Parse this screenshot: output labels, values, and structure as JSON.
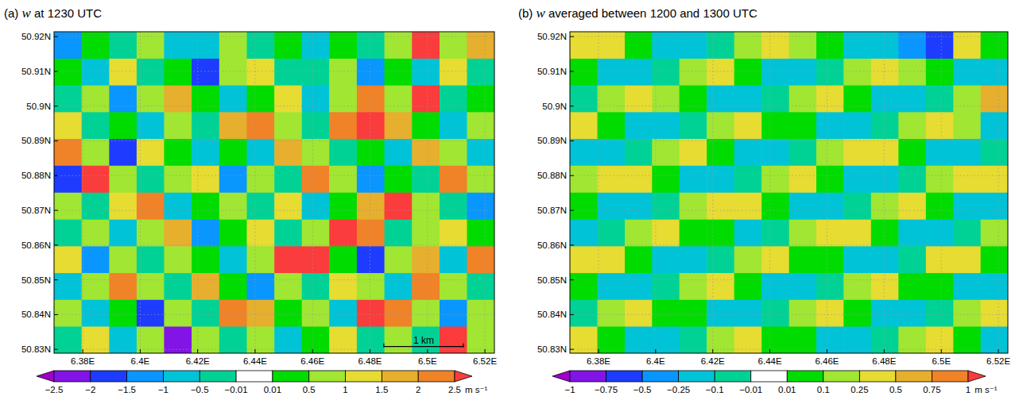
{
  "chart_data": [
    {
      "type": "heatmap",
      "title": "(a) w at 1230 UTC",
      "xlim": [
        6.37,
        6.5233
      ],
      "ylim": [
        50.8289,
        50.9214
      ],
      "grid": true,
      "xticks": [
        {
          "value": 6.38,
          "label": "6.38E"
        },
        {
          "value": 6.4,
          "label": "6.4E"
        },
        {
          "value": 6.42,
          "label": "6.42E"
        },
        {
          "value": 6.44,
          "label": "6.44E"
        },
        {
          "value": 6.46,
          "label": "6.46E"
        },
        {
          "value": 6.48,
          "label": "6.48E"
        },
        {
          "value": 6.5,
          "label": "6.5E"
        },
        {
          "value": 6.52,
          "label": "6.52E"
        }
      ],
      "yticks": [
        {
          "value": 50.83,
          "label": "50.83N"
        },
        {
          "value": 50.84,
          "label": "50.84N"
        },
        {
          "value": 50.85,
          "label": "50.85N"
        },
        {
          "value": 50.86,
          "label": "50.86N"
        },
        {
          "value": 50.87,
          "label": "50.87N"
        },
        {
          "value": 50.88,
          "label": "50.88N"
        },
        {
          "value": 50.89,
          "label": "50.89N"
        },
        {
          "value": 50.9,
          "label": "50.9N"
        },
        {
          "value": 50.91,
          "label": "50.91N"
        },
        {
          "value": 50.92,
          "label": "50.92N"
        }
      ],
      "x": [
        6.3748,
        6.3844,
        6.394,
        6.4035,
        6.4131,
        6.4227,
        6.4323,
        6.4419,
        6.4515,
        6.461,
        6.4706,
        6.4802,
        6.4898,
        6.4994,
        6.509,
        6.5185
      ],
      "y": [
        50.9175,
        50.9098,
        50.9021,
        50.8944,
        50.8867,
        50.879,
        50.8712,
        50.8635,
        50.8558,
        50.8481,
        50.8404,
        50.8327
      ],
      "values": [
        [
          -1.2,
          0.3,
          -0.3,
          0.6,
          -0.6,
          -1.0,
          0.8,
          -0.4,
          0.2,
          -0.8,
          0.4,
          -0.3,
          0.7,
          2.6,
          0.5,
          1.8
        ],
        [
          0.4,
          -0.6,
          1.2,
          -0.3,
          0.2,
          -1.6,
          0.5,
          1.0,
          -0.4,
          -0.2,
          0.6,
          -1.1,
          0.3,
          -0.6,
          1.4,
          -0.5
        ],
        [
          -0.5,
          0.8,
          -1.3,
          0.6,
          1.6,
          0.3,
          -0.7,
          0.4,
          1.2,
          -0.9,
          0.8,
          2.3,
          0.6,
          2.6,
          -0.4,
          0.3
        ],
        [
          1.0,
          -0.3,
          0.4,
          -0.9,
          0.9,
          -0.4,
          1.8,
          2.1,
          0.6,
          -0.3,
          2.4,
          2.7,
          1.5,
          0.4,
          -1.0,
          0.6
        ],
        [
          2.4,
          0.6,
          -1.6,
          1.2,
          0.4,
          -0.8,
          0.3,
          -0.6,
          1.6,
          0.8,
          -0.5,
          0.3,
          -0.9,
          1.9,
          0.5,
          -0.7
        ],
        [
          -1.8,
          2.7,
          0.8,
          -0.4,
          0.6,
          1.3,
          -1.2,
          0.7,
          -0.3,
          2.0,
          0.6,
          -1.4,
          0.4,
          -0.2,
          2.2,
          0.5
        ],
        [
          0.6,
          -0.5,
          1.4,
          2.2,
          -0.7,
          0.3,
          0.8,
          -0.4,
          1.1,
          -0.6,
          0.4,
          1.7,
          2.8,
          0.6,
          -0.5,
          -1.1
        ],
        [
          -0.4,
          0.9,
          -0.8,
          0.5,
          1.8,
          -1.1,
          0.4,
          1.3,
          -0.5,
          0.7,
          2.6,
          2.4,
          -0.3,
          0.5,
          1.2,
          0.3
        ],
        [
          1.3,
          -1.4,
          0.6,
          -0.3,
          0.7,
          0.2,
          -0.8,
          0.5,
          2.5,
          2.7,
          0.4,
          -1.6,
          0.8,
          1.5,
          -0.6,
          2.1
        ],
        [
          -0.7,
          0.5,
          2.3,
          0.9,
          -0.5,
          1.6,
          0.3,
          -1.2,
          0.6,
          -0.4,
          1.0,
          0.5,
          -0.8,
          2.2,
          0.7,
          -0.3
        ],
        [
          0.5,
          -0.9,
          0.4,
          -1.7,
          0.8,
          -0.3,
          2.4,
          1.9,
          0.3,
          0.8,
          -0.6,
          2.6,
          2.2,
          0.5,
          -1.3,
          0.6
        ],
        [
          -0.3,
          1.1,
          -0.6,
          0.5,
          -2.2,
          0.7,
          -0.4,
          0.6,
          -0.9,
          0.3,
          1.4,
          -0.5,
          0.6,
          -0.2,
          2.6,
          0.9
        ]
      ],
      "annotations": [
        {
          "text": "1 km",
          "x": [
            6.4848,
            6.5125
          ],
          "y": 50.8308
        }
      ],
      "colorbar": {
        "levels": [
          -2.5,
          -2,
          -1.5,
          -1,
          -0.5,
          -0.01,
          0.01,
          0.5,
          1,
          1.5,
          2,
          2.5
        ],
        "colors": [
          "#a000c8",
          "#8214e6",
          "#1e3cff",
          "#0a96ff",
          "#00c3d7",
          "#00d296",
          "#ffffff",
          "#00dc00",
          "#a0e632",
          "#e6dc32",
          "#e6af2d",
          "#f08228",
          "#fa3c3c"
        ],
        "ticks": [
          {
            "value": -2.5,
            "label": "−2.5"
          },
          {
            "value": -2,
            "label": "−2"
          },
          {
            "value": -1.5,
            "label": "−1.5"
          },
          {
            "value": -1,
            "label": "−1"
          },
          {
            "value": -0.5,
            "label": "−0.5"
          },
          {
            "value": -0.01,
            "label": "−0.01"
          },
          0.01,
          0.5,
          1,
          1.5,
          2,
          2.5
        ],
        "label": "m s⁻¹"
      }
    },
    {
      "type": "heatmap",
      "title": "(b) w averaged between 1200 and 1300 UTC",
      "xlim": [
        6.37,
        6.5233
      ],
      "ylim": [
        50.8289,
        50.9214
      ],
      "grid": true,
      "xticks": [
        {
          "value": 6.38,
          "label": "6.38E"
        },
        {
          "value": 6.4,
          "label": "6.4E"
        },
        {
          "value": 6.42,
          "label": "6.42E"
        },
        {
          "value": 6.44,
          "label": "6.44E"
        },
        {
          "value": 6.46,
          "label": "6.46E"
        },
        {
          "value": 6.48,
          "label": "6.48E"
        },
        {
          "value": 6.5,
          "label": "6.5E"
        },
        {
          "value": 6.52,
          "label": "6.52E"
        }
      ],
      "yticks": [
        {
          "value": 50.83,
          "label": "50.83N"
        },
        {
          "value": 50.84,
          "label": "50.84N"
        },
        {
          "value": 50.85,
          "label": "50.85N"
        },
        {
          "value": 50.86,
          "label": "50.86N"
        },
        {
          "value": 50.87,
          "label": "50.87N"
        },
        {
          "value": 50.88,
          "label": "50.88N"
        },
        {
          "value": 50.89,
          "label": "50.89N"
        },
        {
          "value": 50.9,
          "label": "50.9N"
        },
        {
          "value": 50.91,
          "label": "50.91N"
        },
        {
          "value": 50.92,
          "label": "50.92N"
        }
      ],
      "x": [
        6.3748,
        6.3844,
        6.394,
        6.4035,
        6.4131,
        6.4227,
        6.4323,
        6.4419,
        6.4515,
        6.461,
        6.4706,
        6.4802,
        6.4898,
        6.4994,
        6.509,
        6.5185
      ],
      "y": [
        50.9175,
        50.9098,
        50.9021,
        50.8944,
        50.8867,
        50.879,
        50.8712,
        50.8635,
        50.8558,
        50.8481,
        50.8404,
        50.8327
      ],
      "values": [
        [
          0.4,
          0.35,
          0.08,
          -0.2,
          -0.25,
          -0.05,
          0.15,
          0.4,
          0.1,
          0.06,
          -0.2,
          -0.22,
          -0.3,
          -0.6,
          0.3,
          0.08
        ],
        [
          0.08,
          -0.2,
          -0.22,
          -0.05,
          0.15,
          0.42,
          0.08,
          -0.18,
          -0.2,
          -0.05,
          0.15,
          0.45,
          0.1,
          0.06,
          -0.25,
          -0.2
        ],
        [
          -0.05,
          0.15,
          0.4,
          0.1,
          0.07,
          -0.2,
          -0.18,
          -0.05,
          0.15,
          0.45,
          0.09,
          -0.2,
          -0.22,
          -0.05,
          0.15,
          0.5
        ],
        [
          0.4,
          0.08,
          -0.2,
          -0.2,
          -0.05,
          0.15,
          0.42,
          0.09,
          0.06,
          -0.2,
          -0.18,
          -0.05,
          0.15,
          0.45,
          0.1,
          -0.2
        ],
        [
          -0.2,
          -0.22,
          -0.05,
          0.15,
          0.4,
          0.09,
          -0.2,
          -0.2,
          -0.05,
          0.15,
          0.45,
          0.4,
          0.08,
          -0.2,
          -0.2,
          -0.05
        ],
        [
          0.15,
          0.4,
          0.38,
          0.08,
          -0.2,
          -0.2,
          -0.05,
          0.15,
          0.42,
          0.08,
          -0.2,
          -0.2,
          -0.05,
          0.15,
          0.45,
          0.4
        ],
        [
          0.08,
          -0.2,
          -0.2,
          -0.05,
          0.15,
          0.4,
          0.38,
          0.08,
          -0.2,
          -0.2,
          -0.05,
          0.15,
          0.42,
          0.08,
          -0.2,
          -0.22
        ],
        [
          -0.2,
          -0.05,
          0.15,
          0.4,
          0.08,
          0.06,
          -0.2,
          -0.05,
          0.15,
          0.42,
          0.4,
          0.08,
          -0.2,
          -0.2,
          -0.05,
          0.15
        ],
        [
          0.4,
          0.38,
          0.08,
          -0.2,
          -0.2,
          -0.05,
          0.15,
          0.4,
          0.08,
          0.07,
          -0.2,
          -0.2,
          -0.05,
          0.4,
          0.42,
          0.08
        ],
        [
          0.08,
          -0.2,
          -0.2,
          -0.05,
          0.15,
          0.4,
          0.08,
          -0.2,
          -0.2,
          -0.05,
          0.15,
          0.4,
          0.08,
          0.08,
          -0.2,
          -0.2
        ],
        [
          -0.05,
          0.15,
          0.4,
          0.08,
          0.08,
          -0.2,
          -0.2,
          -0.05,
          0.15,
          0.4,
          0.08,
          -0.2,
          -0.2,
          -0.05,
          0.15,
          0.4
        ],
        [
          0.4,
          0.08,
          -0.2,
          -0.2,
          -0.05,
          0.15,
          0.4,
          0.08,
          0.08,
          -0.2,
          -0.2,
          -0.05,
          0.15,
          0.4,
          0.08,
          -0.2
        ]
      ],
      "colorbar": {
        "levels": [
          -1,
          -0.75,
          -0.5,
          -0.25,
          -0.1,
          -0.01,
          0.01,
          0.1,
          0.25,
          0.5,
          0.75,
          1
        ],
        "colors": [
          "#a000c8",
          "#8214e6",
          "#1e3cff",
          "#0a96ff",
          "#00c3d7",
          "#00d296",
          "#ffffff",
          "#00dc00",
          "#a0e632",
          "#e6dc32",
          "#e6af2d",
          "#f08228",
          "#fa3c3c"
        ],
        "ticks": [
          {
            "value": -1,
            "label": "−1"
          },
          {
            "value": -0.75,
            "label": "−0.75"
          },
          {
            "value": -0.5,
            "label": "−0.5"
          },
          {
            "value": -0.25,
            "label": "−0.25"
          },
          {
            "value": -0.1,
            "label": "−0.1"
          },
          {
            "value": -0.01,
            "label": "−0.01"
          },
          0.01,
          0.1,
          0.25,
          0.5,
          0.75,
          1
        ],
        "label": "m s⁻¹"
      }
    }
  ]
}
